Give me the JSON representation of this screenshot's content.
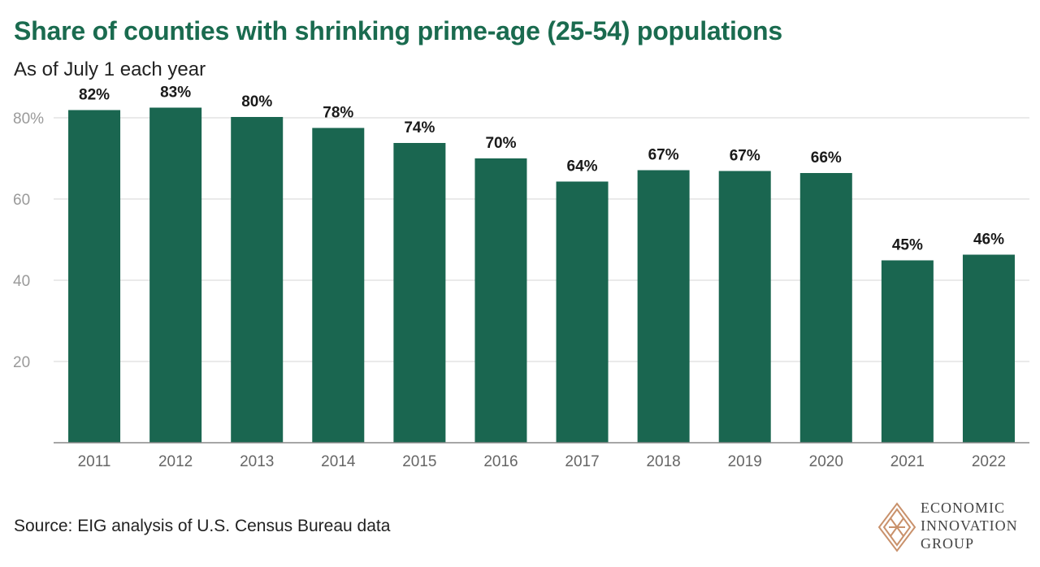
{
  "header": {
    "title": "Share of counties with shrinking prime-age (25-54) populations",
    "subtitle": "As of July 1 each year"
  },
  "footer": {
    "source": "Source: EIG analysis of U.S. Census Bureau data",
    "logo_lines": [
      "ECONOMIC",
      "INNOVATION",
      "GROUP"
    ]
  },
  "colors": {
    "bar": "#1a6650",
    "title": "#1a6b4f",
    "grid": "#d4d4d4",
    "tick": "#9a9a9a",
    "axis": "#888888",
    "label": "#1a1a1a",
    "logo": "#c9916b"
  },
  "chart_data": {
    "type": "bar",
    "title": "Share of counties with shrinking prime-age (25-54) populations",
    "subtitle": "As of July 1 each year",
    "xlabel": "",
    "ylabel": "",
    "categories": [
      "2011",
      "2012",
      "2013",
      "2014",
      "2015",
      "2016",
      "2017",
      "2018",
      "2019",
      "2020",
      "2021",
      "2022"
    ],
    "values": [
      81.9,
      82.5,
      80.2,
      77.5,
      73.8,
      70.0,
      64.3,
      67.1,
      66.9,
      66.4,
      44.9,
      46.3
    ],
    "data_labels": [
      "82%",
      "83%",
      "80%",
      "78%",
      "74%",
      "70%",
      "64%",
      "67%",
      "67%",
      "66%",
      "45%",
      "46%"
    ],
    "ylim": [
      0,
      85
    ],
    "yticks": [
      20,
      40,
      60,
      80
    ],
    "ytick_labels": [
      "20",
      "40",
      "60",
      "80%"
    ],
    "grid": true,
    "legend": "none"
  }
}
